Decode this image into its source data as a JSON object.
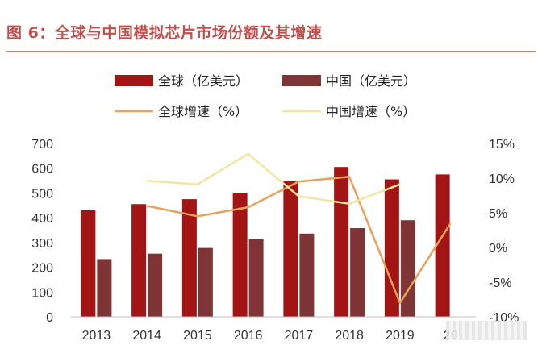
{
  "figure": {
    "title": "图 6：全球与中国模拟芯片市场份额及其增速"
  },
  "colors": {
    "title": "#c0504d",
    "global_bar": "#a31515",
    "china_bar": "#7f3535",
    "global_growth_line": "#e8a05a",
    "china_growth_line": "#f0e6a0",
    "axis_text": "#333333"
  },
  "chart_data": {
    "type": "bar",
    "categories": [
      "2013",
      "2014",
      "2015",
      "2016",
      "2017",
      "2018",
      "2019",
      "20"
    ],
    "series": [
      {
        "name": "全球（亿美元）",
        "axis": "left",
        "kind": "bar",
        "values": [
          430,
          455,
          475,
          500,
          550,
          605,
          555,
          575
        ]
      },
      {
        "name": "中国（亿美元）",
        "axis": "left",
        "kind": "bar",
        "values": [
          233,
          255,
          278,
          313,
          336,
          358,
          390,
          null
        ]
      },
      {
        "name": "全球增速（%）",
        "axis": "right",
        "kind": "line",
        "values": [
          null,
          6.0,
          4.5,
          5.8,
          9.5,
          10.2,
          -8.0,
          3.5
        ]
      },
      {
        "name": "中国增速（%）",
        "axis": "right",
        "kind": "line",
        "values": [
          null,
          9.6,
          9.1,
          13.5,
          7.4,
          6.3,
          9.1,
          null
        ]
      }
    ],
    "ylim_left": [
      0,
      700
    ],
    "yticks_left": [
      "0",
      "100",
      "200",
      "300",
      "400",
      "500",
      "600",
      "700"
    ],
    "ylim_right": [
      -10,
      15
    ],
    "yticks_right": [
      "-10%",
      "-5%",
      "0%",
      "5%",
      "10%",
      "15%"
    ],
    "legend_position": "top",
    "grid": false
  }
}
